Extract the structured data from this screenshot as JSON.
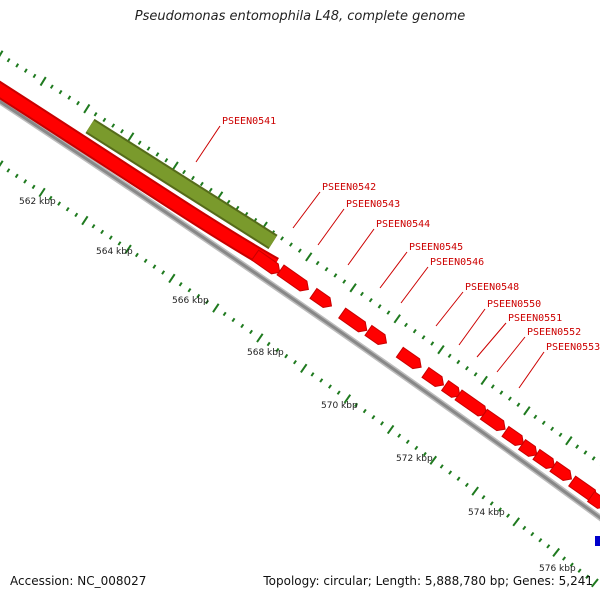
{
  "title": "Pseudomonas entomophila L48, complete genome",
  "footer": {
    "accession": "Accession: NC_008027",
    "stats": "Topology: circular; Length: 5,888,780 bp; Genes: 5,241"
  },
  "colors": {
    "gene": "#ff0000",
    "gene_dark": "#c80000",
    "highlight": "#7a9a2c",
    "highlight_dark": "#556b1a",
    "backbone": "#888888",
    "ticks": "#1f7a1f",
    "label": "#cc0000",
    "marker": "#0000cc"
  },
  "axis": {
    "ticks": [
      {
        "label": "562 kbp"
      },
      {
        "label": "564 kbp"
      },
      {
        "label": "566 kbp"
      },
      {
        "label": "568 kbp"
      },
      {
        "label": "570 kbp"
      },
      {
        "label": "572 kbp"
      },
      {
        "label": "574 kbp"
      },
      {
        "label": "576 kbp"
      }
    ]
  },
  "gene_labels": [
    "PSEEN0541",
    "PSEEN0542",
    "PSEEN0543",
    "PSEEN0544",
    "PSEEN0545",
    "PSEEN0546",
    "PSEEN0548",
    "PSEEN0550",
    "PSEEN0551",
    "PSEEN0552",
    "PSEEN0553"
  ]
}
